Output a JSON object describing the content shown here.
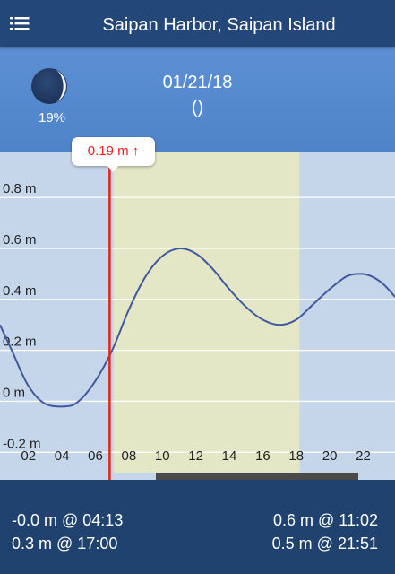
{
  "header": {
    "title": "Saipan Harbor, Saipan Island",
    "menu_icon": "menu-list-icon"
  },
  "info": {
    "moon_icon": "moon-phase-icon",
    "moon_percent": "19%",
    "date": "01/21/18",
    "paren": "()"
  },
  "chart_data": {
    "type": "line",
    "title": "",
    "xlabel": "",
    "ylabel": "",
    "x_ticks": [
      "02",
      "04",
      "06",
      "08",
      "10",
      "12",
      "14",
      "16",
      "18",
      "20",
      "22"
    ],
    "y_ticks": [
      "0.8 m",
      "0.6 m",
      "0.4 m",
      "0.2 m",
      "0 m",
      "-0.2 m"
    ],
    "y_tick_values": [
      0.8,
      0.6,
      0.4,
      0.2,
      0.0,
      -0.2
    ],
    "xlim": [
      0.3,
      23.9
    ],
    "ylim": [
      -0.28,
      0.98
    ],
    "daylight_range": [
      7.1,
      18.2
    ],
    "current_time": 6.85,
    "current_value": 0.19,
    "grid": true,
    "colors": {
      "line": "#3f58a0",
      "marker": "#e8211a",
      "daylight": "#e3e7c5",
      "night": "#c6d6ea",
      "grid": "#ffffff"
    },
    "series": [
      {
        "x": [
          0.3,
          1,
          2,
          3,
          4.22,
          5,
          6,
          7,
          8,
          9,
          10,
          11.03,
          12,
          13,
          14,
          15,
          16,
          17,
          18,
          19,
          20,
          21,
          21.85,
          22.5,
          23.2,
          23.9
        ],
        "y": [
          0.3,
          0.2,
          0.06,
          -0.01,
          -0.02,
          0.0,
          0.08,
          0.2,
          0.36,
          0.49,
          0.57,
          0.6,
          0.58,
          0.52,
          0.44,
          0.37,
          0.32,
          0.3,
          0.32,
          0.38,
          0.44,
          0.49,
          0.5,
          0.49,
          0.46,
          0.41
        ]
      }
    ]
  },
  "callout": {
    "value": "0.19 m",
    "arrow": "↑"
  },
  "tide_events": [
    {
      "text": "-0.0 m @ 04:13"
    },
    {
      "text": "0.6 m @ 11:02"
    },
    {
      "text": "0.3 m @ 17:00"
    },
    {
      "text": "0.5 m @ 21:51"
    }
  ]
}
